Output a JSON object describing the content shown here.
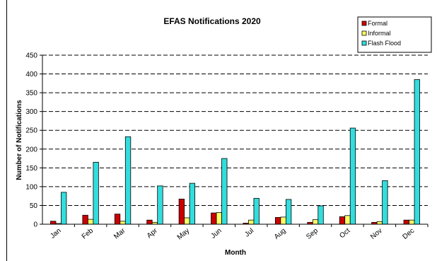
{
  "chart_data": {
    "type": "bar",
    "title": "EFAS Notifications 2020",
    "xlabel": "Month",
    "ylabel": "Number of Notifications",
    "ylim": [
      0,
      450
    ],
    "ytick_step": 50,
    "grid": true,
    "legend_position": "top-right",
    "categories": [
      "Jan",
      "Feb",
      "Mar",
      "Apr",
      "May",
      "Jun",
      "Jul",
      "Aug",
      "Sep",
      "Oct",
      "Nov",
      "Dec"
    ],
    "series": [
      {
        "name": "Formal",
        "color": "#cc0000",
        "values": [
          8,
          24,
          27,
          11,
          67,
          30,
          3,
          18,
          5,
          20,
          5,
          11
        ]
      },
      {
        "name": "Informal",
        "color": "#ffff66",
        "values": [
          2,
          13,
          8,
          5,
          17,
          31,
          11,
          19,
          12,
          23,
          7,
          11
        ]
      },
      {
        "name": "Flash Flood",
        "color": "#33dddd",
        "values": [
          85,
          165,
          233,
          102,
          109,
          175,
          69,
          66,
          49,
          256,
          116,
          385
        ]
      }
    ]
  }
}
